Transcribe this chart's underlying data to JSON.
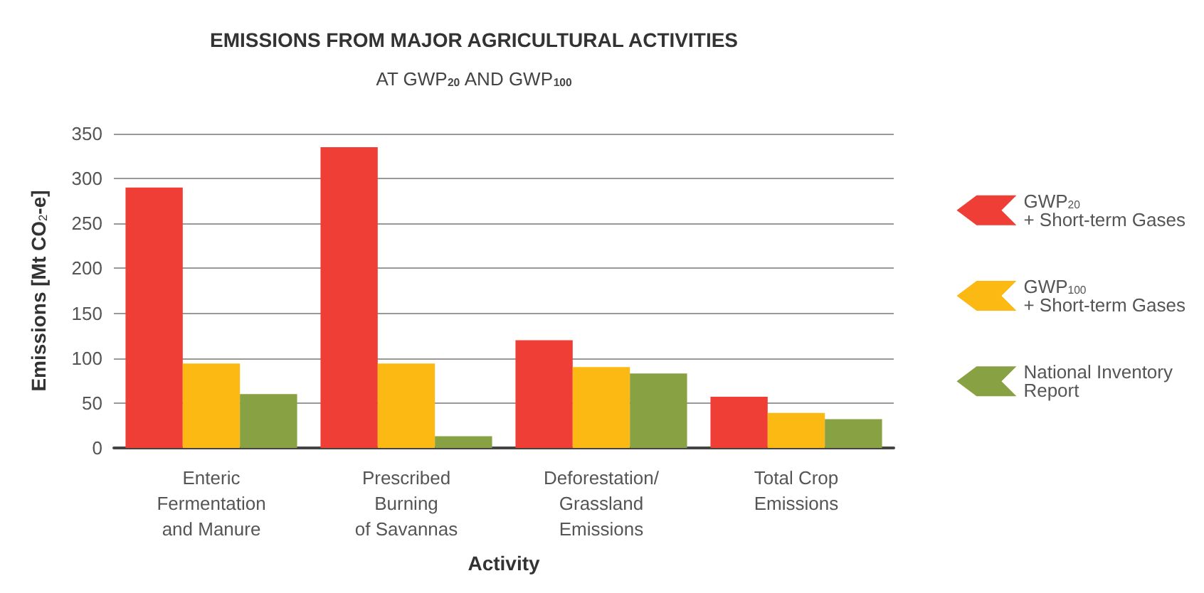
{
  "chart_data": {
    "type": "bar",
    "title": "EMISSIONS FROM MAJOR AGRICULTURAL ACTIVITIES",
    "subtitle": "AT GWP$_{20}$ AND GWP$_{100}$",
    "xlabel": "Activity",
    "ylabel": "Emissions [Mt CO$_{2}$-e]",
    "categories": [
      "Enteric\nFermentation\nand Manure",
      "Prescribed\nBurning\nof Savannas",
      "Deforestation/\nGrassland\nEmissions",
      "Total Crop\nEmissions"
    ],
    "series": [
      {
        "name": "GWP$_{20}$\n+ Short-term Gases",
        "color": "#ef3e36",
        "values": [
          290,
          335,
          120,
          57
        ]
      },
      {
        "name": "GWP$_{100}$\n+ Short-term Gases",
        "color": "#fdb913",
        "values": [
          94,
          94,
          90,
          39
        ]
      },
      {
        "name": "National Inventory\nReport",
        "color": "#87a143",
        "values": [
          60,
          13,
          83,
          32
        ]
      }
    ],
    "ylim": [
      0,
      350
    ],
    "yticks": [
      0,
      50,
      100,
      150,
      200,
      250,
      300,
      350
    ],
    "grid": "y",
    "legend": "right"
  }
}
